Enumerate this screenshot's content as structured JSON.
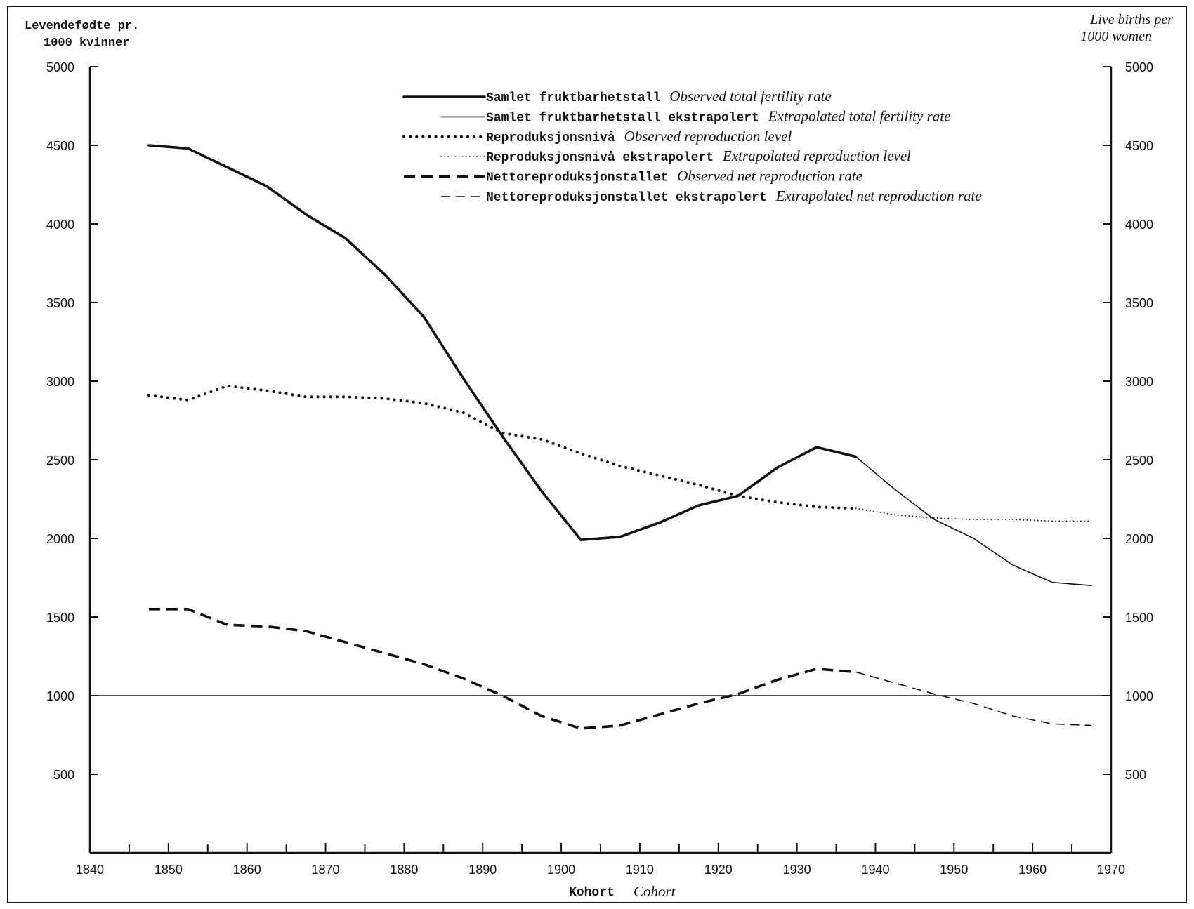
{
  "chart_data": {
    "type": "line",
    "left_axis_label": [
      "Levendefødte pr.",
      "1000 kvinner"
    ],
    "right_axis_label": [
      "Live births per",
      "1000 women"
    ],
    "xlabel": "Kohort",
    "xlabel_en": "Cohort",
    "xlim": [
      1840,
      1970
    ],
    "ylim": [
      0,
      5000
    ],
    "x_ticks": [
      "1840",
      "1850",
      "1860",
      "1870",
      "1880",
      "1890",
      "1900",
      "1910",
      "1920",
      "1930",
      "1940",
      "1950",
      "1960",
      "1970"
    ],
    "y_ticks_left": [
      "500",
      "1000",
      "1500",
      "2000",
      "2500",
      "3000",
      "3500",
      "4000",
      "4500",
      "5000"
    ],
    "y_ticks_right": [
      "500",
      "1000",
      "1500",
      "2000",
      "2500",
      "3000",
      "3500",
      "4000",
      "4500",
      "5000"
    ],
    "reference_line": 1000,
    "legend_position": "top-center",
    "series": [
      {
        "name": "Samlet fruktbarhetstall",
        "name_en": "Observed total fertility rate",
        "style": "solid-thick",
        "x": [
          1847.5,
          1852.5,
          1857.5,
          1862.5,
          1867.5,
          1872.5,
          1877.5,
          1882.5,
          1887.5,
          1892.5,
          1897.5,
          1902.5,
          1907.5,
          1912.5,
          1917.5,
          1922.5,
          1927.5,
          1932.5,
          1937.5
        ],
        "values": [
          4500,
          4480,
          4360,
          4240,
          4060,
          3910,
          3680,
          3410,
          3020,
          2650,
          2300,
          1990,
          2010,
          2100,
          2210,
          2270,
          2450,
          2580,
          2520
        ]
      },
      {
        "name": "Samlet fruktbarhetstall ekstrapolert",
        "name_en": "Extrapolated total fertility rate",
        "style": "solid-thin",
        "x": [
          1937.5,
          1942.5,
          1947.5,
          1952.5,
          1957.5,
          1962.5,
          1967.5
        ],
        "values": [
          2520,
          2310,
          2120,
          2000,
          1830,
          1720,
          1700
        ]
      },
      {
        "name": "Reproduksjonsnivå",
        "name_en": "Observed reproduction level",
        "style": "dotted-thick",
        "x": [
          1847.5,
          1852.5,
          1857.5,
          1862.5,
          1867.5,
          1872.5,
          1877.5,
          1882.5,
          1887.5,
          1892.5,
          1897.5,
          1902.5,
          1907.5,
          1912.5,
          1917.5,
          1922.5,
          1927.5,
          1932.5,
          1937.5
        ],
        "values": [
          2910,
          2880,
          2970,
          2940,
          2900,
          2900,
          2890,
          2860,
          2800,
          2670,
          2630,
          2540,
          2460,
          2400,
          2340,
          2270,
          2230,
          2200,
          2190
        ]
      },
      {
        "name": "Reproduksjonsnivå ekstrapolert",
        "name_en": "Extrapolated reproduction level",
        "style": "dotted-thin",
        "x": [
          1937.5,
          1942.5,
          1947.5,
          1952.5,
          1957.5,
          1962.5,
          1967.5
        ],
        "values": [
          2190,
          2150,
          2130,
          2120,
          2120,
          2110,
          2110
        ]
      },
      {
        "name": "Nettoreproduksjonstallet",
        "name_en": "Observed net reproduction rate",
        "style": "dashed-thick",
        "x": [
          1847.5,
          1852.5,
          1857.5,
          1862.5,
          1867.5,
          1872.5,
          1877.5,
          1882.5,
          1887.5,
          1892.5,
          1897.5,
          1902.5,
          1907.5,
          1912.5,
          1917.5,
          1922.5,
          1927.5,
          1932.5,
          1937.5
        ],
        "values": [
          1550,
          1550,
          1450,
          1440,
          1410,
          1340,
          1270,
          1200,
          1110,
          1000,
          870,
          790,
          810,
          880,
          950,
          1010,
          1100,
          1170,
          1150
        ]
      },
      {
        "name": "Nettoreproduksjonstallet ekstrapolert",
        "name_en": "Extrapolated net reproduction rate",
        "style": "dashed-thin",
        "x": [
          1937.5,
          1942.5,
          1947.5,
          1952.5,
          1957.5,
          1962.5,
          1967.5
        ],
        "values": [
          1150,
          1080,
          1010,
          950,
          870,
          820,
          810
        ]
      }
    ]
  }
}
